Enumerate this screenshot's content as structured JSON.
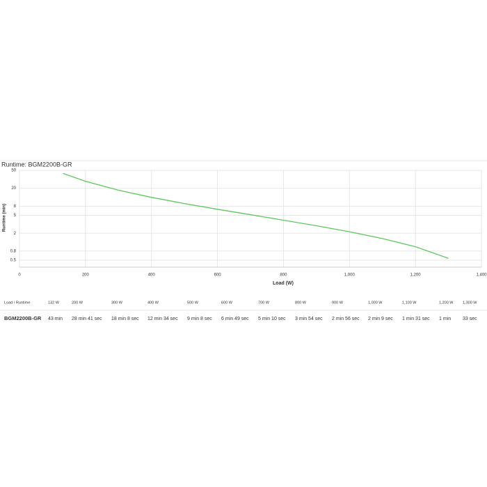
{
  "chart_data": {
    "type": "line",
    "title": "Runtime: BGM2200B-GR",
    "x_label": "Load (W)",
    "y_label": "Runtime (min)",
    "x": [
      132,
      200,
      300,
      400,
      500,
      600,
      700,
      800,
      900,
      1000,
      1100,
      1200,
      1300
    ],
    "values": [
      43,
      28.68,
      18.13,
      12.57,
      9.13,
      6.82,
      5.17,
      3.9,
      2.93,
      2.15,
      1.52,
      1,
      0.55
    ],
    "color": "#5cc85c",
    "xlim": [
      0,
      1400
    ],
    "xticks": [
      0,
      200,
      400,
      600,
      800,
      {
        "value": 1000,
        "label": "1,000"
      },
      {
        "value": 1200,
        "label": "1,200"
      },
      {
        "value": 1400,
        "label": "1,400"
      }
    ],
    "ylim": [
      0.35,
      50
    ],
    "y_scale": "log",
    "yticks": [
      0.5,
      0.8,
      2,
      5,
      8,
      20,
      50
    ],
    "grid": true
  },
  "table": {
    "header": [
      "Load / Runtime",
      "132 W",
      "200 W",
      "300 W",
      "400 W",
      "500 W",
      "600 W",
      "700 W",
      "800 W",
      "900 W",
      "1,000 W",
      "1,100 W",
      "1,200 W",
      "1,300 W"
    ],
    "rows": [
      [
        "BGM2200B-GR",
        "43 min",
        "28 min 41 sec",
        "18 min 8 sec",
        "12 min 34 sec",
        "9 min 8 sec",
        "6 min 49 sec",
        "5 min 10 sec",
        "3 min 54 sec",
        "2 min 56 sec",
        "2 min 9 sec",
        "1 min 31 sec",
        "1 min",
        "33 sec"
      ]
    ]
  }
}
